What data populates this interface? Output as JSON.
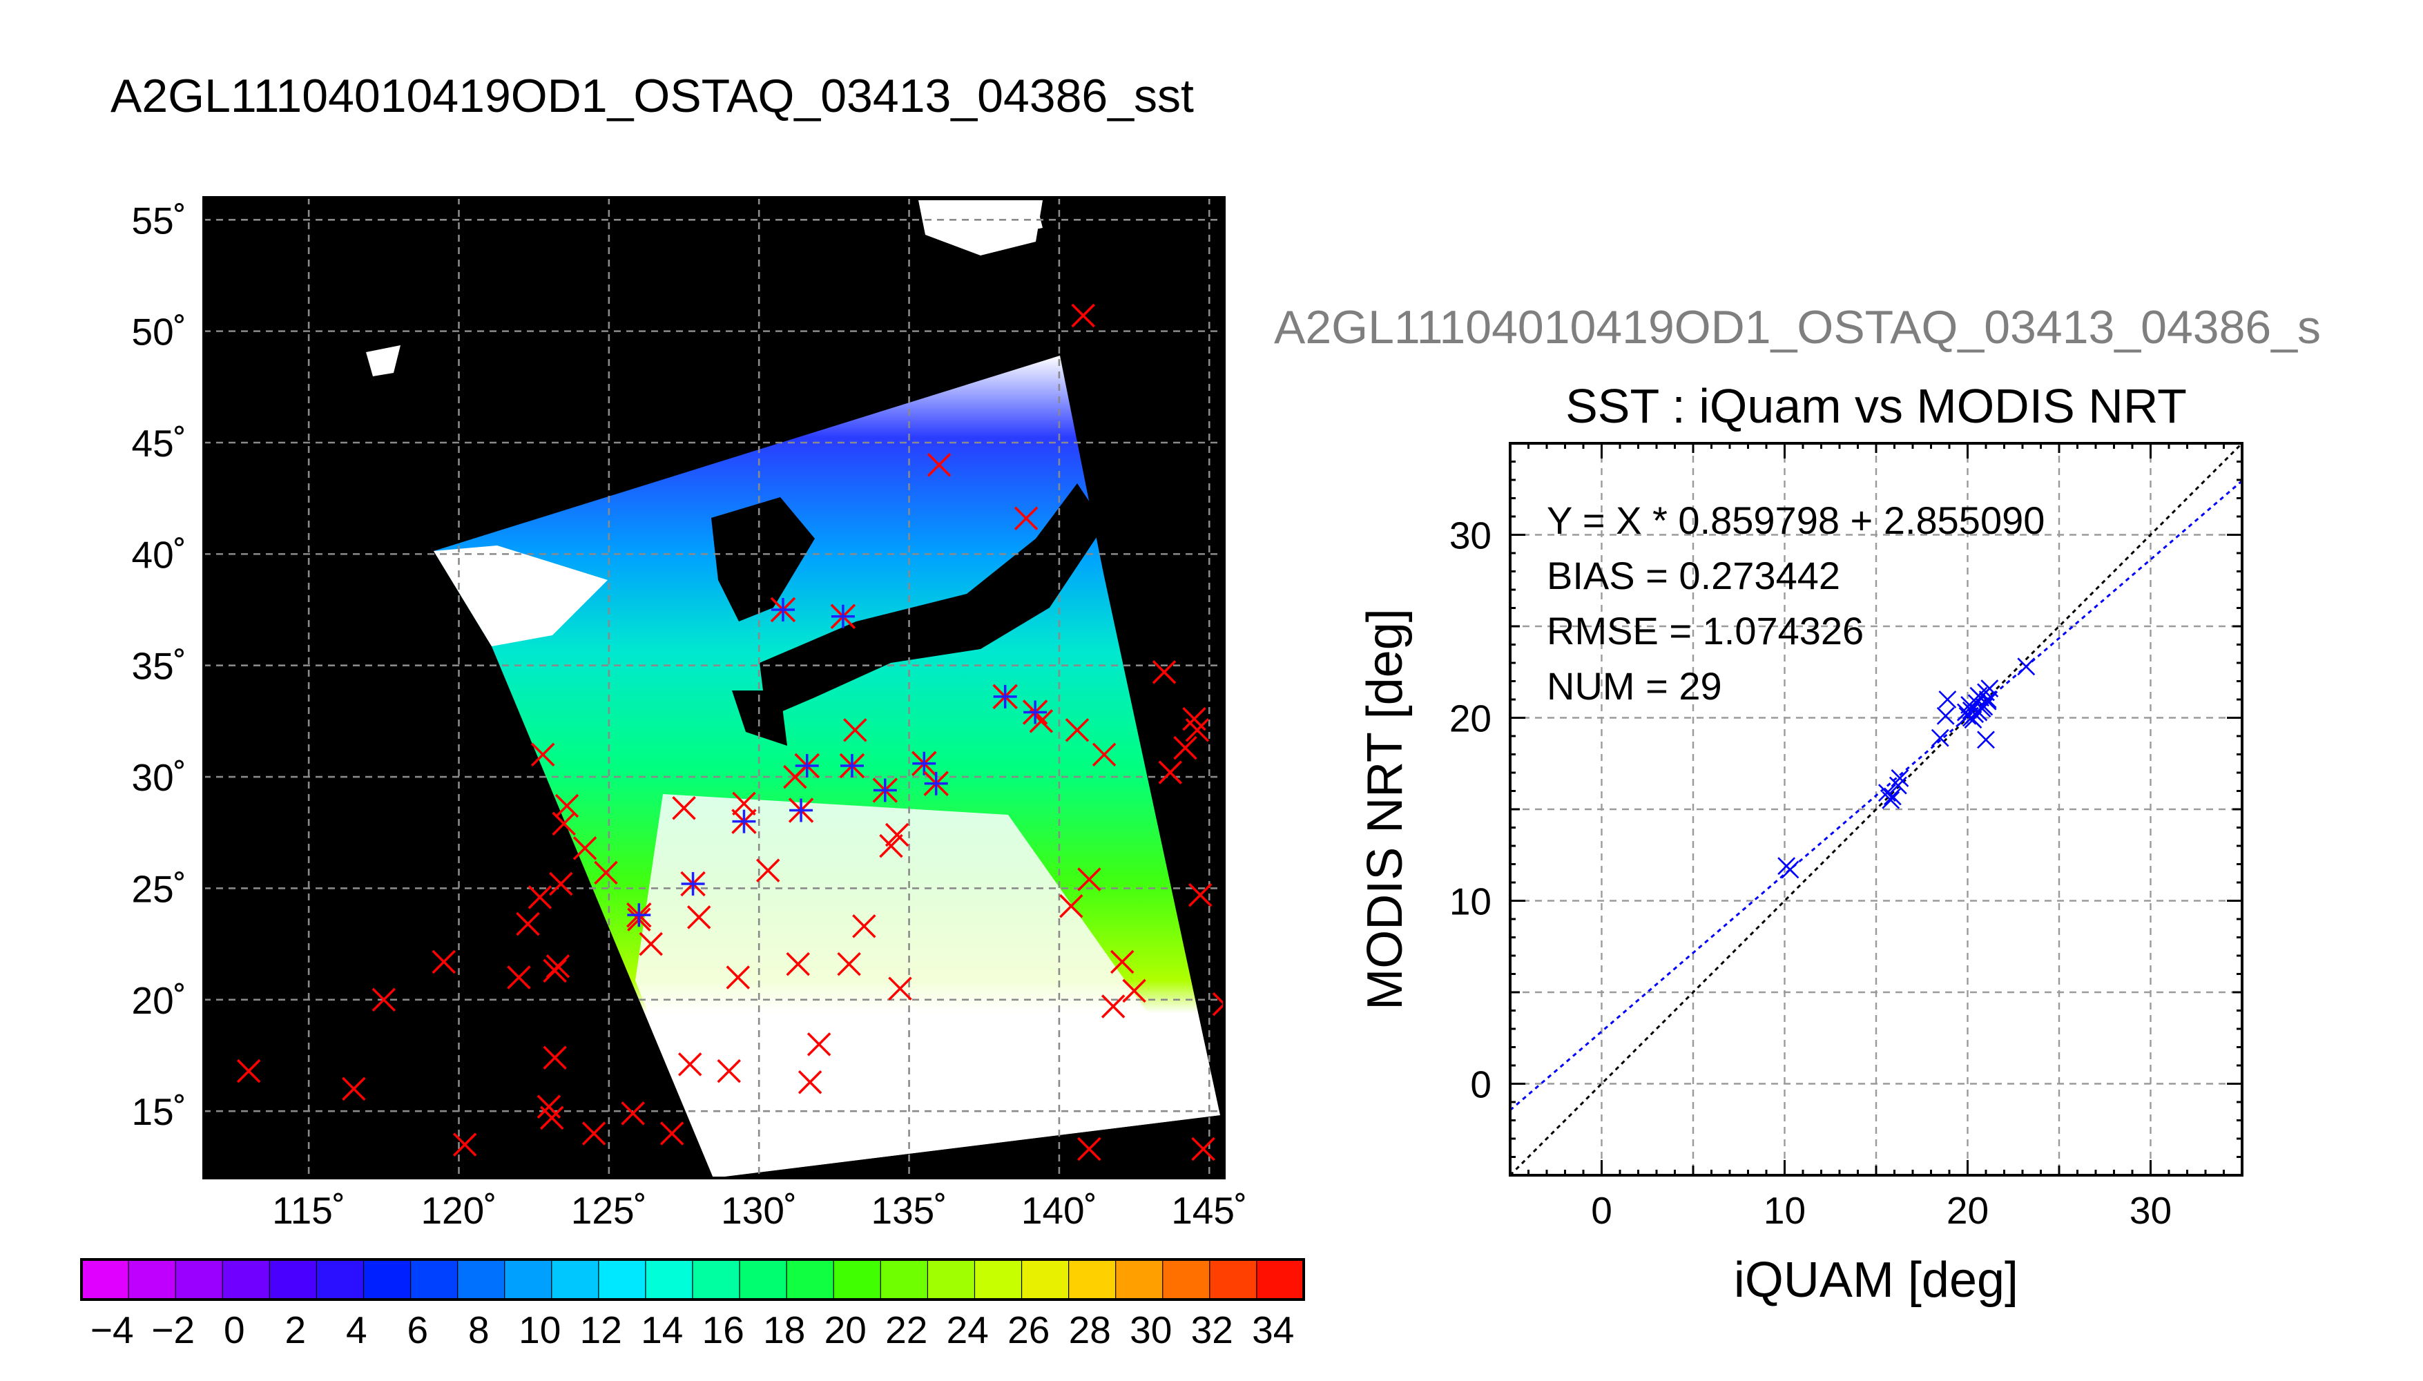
{
  "main_title": "A2GL11104010419OD1_OSTAQ_03413_04386_sst",
  "secondary_title": "A2GL11104010419OD1_OSTAQ_03413_04386_s",
  "chart_data": [
    {
      "type": "map",
      "lat_ticks": [
        "55˚",
        "50˚",
        "45˚",
        "40˚",
        "35˚",
        "30˚",
        "25˚",
        "20˚",
        "15˚"
      ],
      "lat_values": [
        55,
        50,
        45,
        40,
        35,
        30,
        25,
        20,
        15
      ],
      "lon_ticks": [
        "115˚",
        "120˚",
        "125˚",
        "130˚",
        "135˚",
        "140˚",
        "145˚"
      ],
      "lon_values": [
        115,
        120,
        125,
        130,
        135,
        140,
        145
      ],
      "lon_range": [
        111.5,
        145.5
      ],
      "lat_range": [
        12,
        56
      ],
      "colorbar": {
        "ticks": [
          "−4",
          "−2",
          "0",
          "2",
          "4",
          "6",
          "8",
          "10",
          "12",
          "14",
          "16",
          "18",
          "20",
          "22",
          "24",
          "26",
          "28",
          "30",
          "32",
          "34"
        ],
        "range": [
          -5,
          35
        ],
        "colors": [
          "#e000ff",
          "#c000ff",
          "#9a00ff",
          "#7000ff",
          "#4a00ff",
          "#2a10ff",
          "#0020ff",
          "#0040ff",
          "#0070ff",
          "#00a0ff",
          "#00c8ff",
          "#00e8ff",
          "#00ffd8",
          "#00ffa0",
          "#00ff70",
          "#10ff40",
          "#40ff00",
          "#70ff00",
          "#a0ff00",
          "#c8ff00",
          "#e8f000",
          "#ffd000",
          "#ffa000",
          "#ff7000",
          "#ff4000",
          "#ff1000"
        ]
      },
      "matched_points": [
        [
          126,
          23.8
        ],
        [
          127.8,
          25.2
        ],
        [
          129.5,
          28
        ],
        [
          130.8,
          37.5
        ],
        [
          132.8,
          37.2
        ],
        [
          131.6,
          30.5
        ],
        [
          133.1,
          30.5
        ],
        [
          131.4,
          28.5
        ],
        [
          134.2,
          29.4
        ],
        [
          135.5,
          30.6
        ],
        [
          135.9,
          29.7
        ],
        [
          138.2,
          33.6
        ],
        [
          139.2,
          32.9
        ]
      ],
      "unmatched_points": [
        [
          113,
          16.8
        ],
        [
          116.5,
          16
        ],
        [
          117.5,
          20
        ],
        [
          119.5,
          21.7
        ],
        [
          120.2,
          13.5
        ],
        [
          122,
          21
        ],
        [
          122.3,
          23.4
        ],
        [
          122.7,
          24.6
        ],
        [
          123,
          15.2
        ],
        [
          123.1,
          14.7
        ],
        [
          123.2,
          17.4
        ],
        [
          123.2,
          21.3
        ],
        [
          123.3,
          21.5
        ],
        [
          123.4,
          25.2
        ],
        [
          123.5,
          27.9
        ],
        [
          123.6,
          28.7
        ],
        [
          122.8,
          31
        ],
        [
          124.2,
          26.8
        ],
        [
          124.5,
          14
        ],
        [
          124.9,
          25.7
        ],
        [
          125.8,
          14.9
        ],
        [
          126,
          23.6
        ],
        [
          126.4,
          22.5
        ],
        [
          127.1,
          14
        ],
        [
          127.5,
          28.6
        ],
        [
          127.7,
          17.1
        ],
        [
          128,
          23.7
        ],
        [
          129,
          16.8
        ],
        [
          129.3,
          21
        ],
        [
          129.5,
          28.8
        ],
        [
          130.3,
          25.8
        ],
        [
          131.2,
          30
        ],
        [
          131.3,
          21.6
        ],
        [
          131.7,
          16.3
        ],
        [
          132,
          18
        ],
        [
          133,
          21.6
        ],
        [
          133.2,
          32.1
        ],
        [
          133.5,
          23.3
        ],
        [
          134.4,
          26.9
        ],
        [
          134.6,
          27.4
        ],
        [
          134.7,
          20.5
        ],
        [
          136,
          44
        ],
        [
          138.9,
          41.6
        ],
        [
          139.4,
          32.5
        ],
        [
          140.4,
          24.2
        ],
        [
          140.6,
          32.1
        ],
        [
          140.8,
          50.7
        ],
        [
          141,
          25.4
        ],
        [
          141,
          13.3
        ],
        [
          141.5,
          31
        ],
        [
          141.8,
          19.7
        ],
        [
          142.1,
          21.7
        ],
        [
          142.5,
          20.4
        ],
        [
          143.5,
          34.7
        ],
        [
          143.7,
          30.2
        ],
        [
          144.2,
          31.3
        ],
        [
          144.5,
          32.6
        ],
        [
          144.6,
          32.1
        ],
        [
          144.7,
          24.7
        ],
        [
          144.8,
          13.3
        ],
        [
          145.5,
          19.8
        ]
      ]
    },
    {
      "type": "scatter",
      "title": "SST : iQuam vs MODIS NRT",
      "xlabel": "iQUAM [deg]",
      "ylabel": "MODIS NRT [deg]",
      "xlim": [
        -5,
        35
      ],
      "ylim": [
        -5,
        35
      ],
      "xticks": [
        0,
        10,
        20,
        30
      ],
      "yticks": [
        0,
        10,
        20,
        30
      ],
      "grid": true,
      "stats": [
        "Y = X * 0.859798 + 2.855090",
        "BIAS = 0.273442",
        "RMSE = 1.074326",
        "NUM = 29"
      ],
      "fit": {
        "slope": 0.859798,
        "intercept": 2.85509
      },
      "points": [
        [
          10.1,
          11.9
        ],
        [
          10.3,
          11.7
        ],
        [
          15.6,
          15.9
        ],
        [
          15.8,
          15.5
        ],
        [
          15.9,
          15.7
        ],
        [
          16.3,
          16.7
        ],
        [
          16.2,
          16.3
        ],
        [
          18.5,
          18.9
        ],
        [
          18.8,
          20.1
        ],
        [
          18.9,
          21.0
        ],
        [
          20.0,
          20.1
        ],
        [
          20.2,
          20.4
        ],
        [
          20.3,
          19.9
        ],
        [
          20.5,
          20.8
        ],
        [
          20.6,
          20.3
        ],
        [
          20.1,
          20.7
        ],
        [
          20.7,
          21.1
        ],
        [
          20.9,
          20.6
        ],
        [
          21.0,
          21.4
        ],
        [
          21.1,
          21.0
        ],
        [
          21.2,
          21.6
        ],
        [
          20.4,
          20.2
        ],
        [
          20.8,
          20.5
        ],
        [
          21.0,
          18.8
        ],
        [
          23.2,
          22.8
        ],
        [
          20.2,
          20.0
        ],
        [
          20.6,
          21.2
        ],
        [
          19.9,
          20.3
        ],
        [
          21.1,
          20.9
        ]
      ]
    }
  ]
}
